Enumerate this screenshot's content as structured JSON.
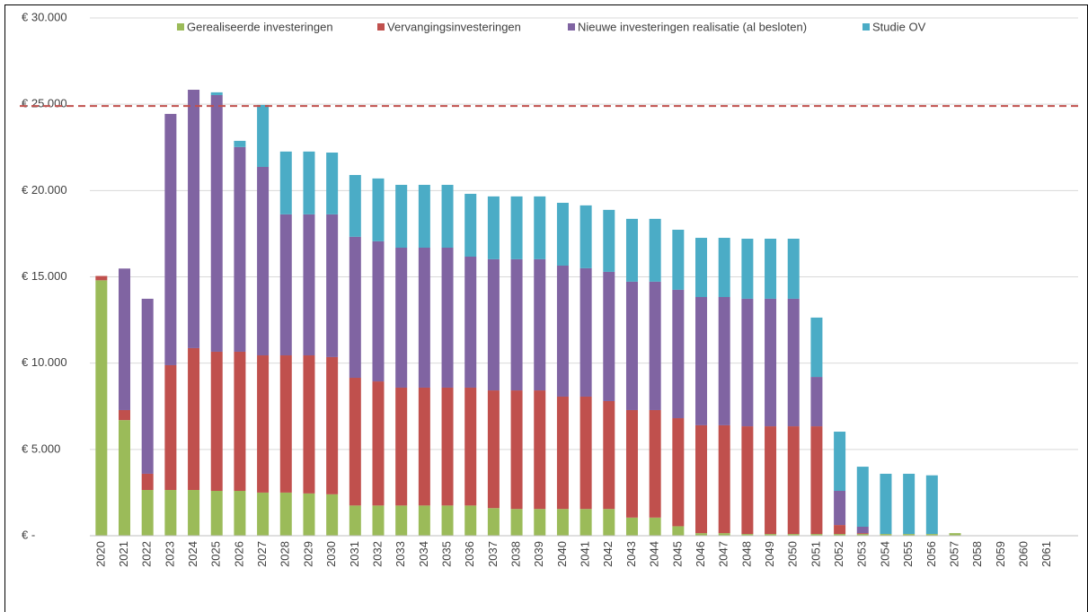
{
  "chart_data": {
    "type": "stacked_bar",
    "categories": [
      "2020",
      "2021",
      "2022",
      "2023",
      "2024",
      "2025",
      "2026",
      "2027",
      "2028",
      "2029",
      "2030",
      "2031",
      "2032",
      "2033",
      "2034",
      "2035",
      "2036",
      "2037",
      "2038",
      "2039",
      "2040",
      "2041",
      "2042",
      "2043",
      "2044",
      "2045",
      "2046",
      "2047",
      "2048",
      "2049",
      "2050",
      "2051",
      "2052",
      "2053",
      "2054",
      "2055",
      "2056",
      "2057",
      "2058",
      "2059",
      "2060",
      "2061"
    ],
    "series": [
      {
        "name": "Gerealiseerde investeringen",
        "color": "#9bbb59",
        "values": [
          14800,
          6700,
          2650,
          2650,
          2650,
          2600,
          2600,
          2500,
          2500,
          2450,
          2400,
          1750,
          1750,
          1750,
          1750,
          1750,
          1750,
          1600,
          1550,
          1550,
          1550,
          1550,
          1550,
          1050,
          1050,
          550,
          150,
          150,
          100,
          100,
          100,
          100,
          100,
          100,
          100,
          100,
          100,
          150,
          0,
          0,
          0,
          0
        ]
      },
      {
        "name": "Vervangingsinvesteringen",
        "color": "#c0504d",
        "values": [
          250,
          580,
          940,
          7230,
          8220,
          8060,
          8060,
          7950,
          7950,
          8000,
          7950,
          7400,
          7190,
          6830,
          6830,
          6830,
          6830,
          6820,
          6870,
          6870,
          6510,
          6510,
          6250,
          6230,
          6230,
          6260,
          6250,
          6250,
          6240,
          6240,
          6240,
          6240,
          520,
          50,
          0,
          0,
          0,
          0,
          0,
          0,
          0,
          0
        ]
      },
      {
        "name": "Nieuwe investeringen realisatie (al besloten)",
        "color": "#8064a2",
        "values": [
          0,
          8200,
          10140,
          14560,
          14970,
          14870,
          11860,
          10920,
          8170,
          8170,
          8270,
          8170,
          8120,
          8110,
          8110,
          8110,
          7590,
          7600,
          7600,
          7600,
          7590,
          7440,
          7490,
          7440,
          7440,
          7440,
          7430,
          7430,
          7390,
          7390,
          7390,
          2860,
          1980,
          370,
          0,
          0,
          0,
          0,
          0,
          0,
          0,
          0
        ]
      },
      {
        "name": "Studie OV",
        "color": "#4bacc6",
        "values": [
          0,
          0,
          0,
          0,
          0,
          160,
          360,
          3590,
          3640,
          3640,
          3580,
          3580,
          3640,
          3640,
          3640,
          3640,
          3640,
          3640,
          3640,
          3640,
          3640,
          3640,
          3590,
          3640,
          3640,
          3480,
          3430,
          3430,
          3480,
          3480,
          3480,
          3440,
          3430,
          3480,
          3490,
          3490,
          3400,
          0,
          0,
          0,
          0,
          0
        ]
      }
    ],
    "ylim": [
      0,
      30000
    ],
    "yticks": [
      {
        "value": 0,
        "label": "€ -"
      },
      {
        "value": 5000,
        "label": "€ 5.000"
      },
      {
        "value": 10000,
        "label": "€ 10.000"
      },
      {
        "value": 15000,
        "label": "€ 15.000"
      },
      {
        "value": 20000,
        "label": "€ 20.000"
      },
      {
        "value": 25000,
        "label": "€ 25.000"
      },
      {
        "value": 30000,
        "label": "€ 30.000"
      }
    ],
    "grid": true,
    "legend": "top",
    "reference_line": {
      "value": 24900,
      "color": "#c0504d"
    }
  }
}
